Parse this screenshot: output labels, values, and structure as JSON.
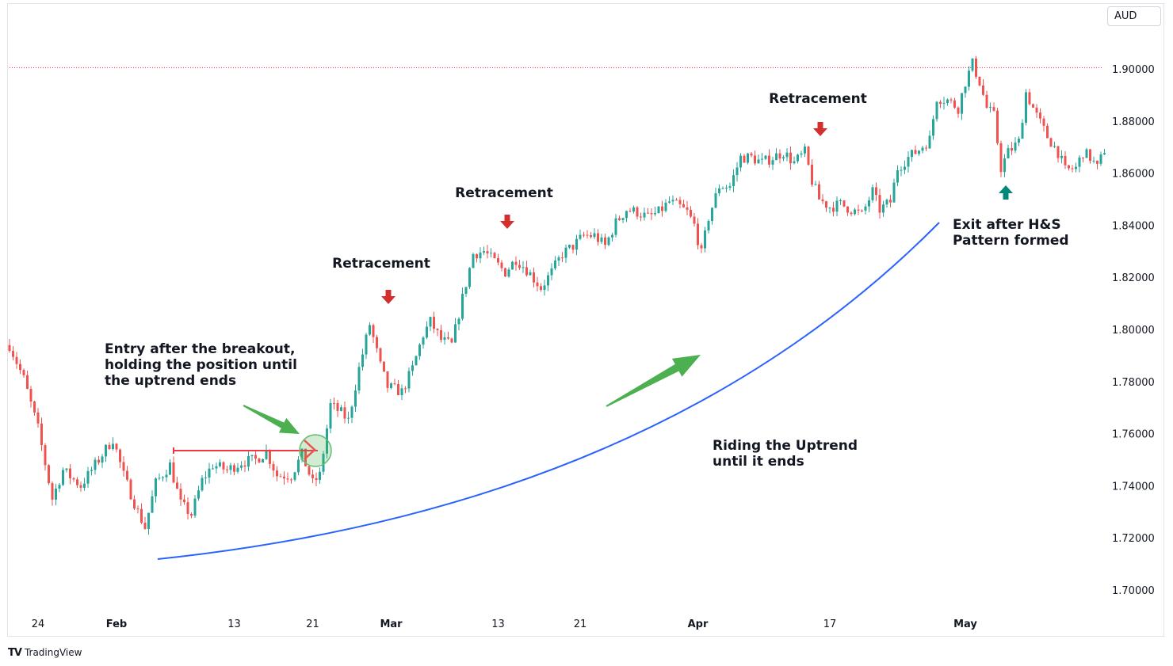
{
  "currency": "AUD",
  "brand": {
    "logo": "TV",
    "name": "TradingView"
  },
  "colors": {
    "up": "#26a69a",
    "down": "#ef5350",
    "curve": "#2962ff",
    "green_arrow": "#4caf50",
    "red_marker": "#d32f2f",
    "teal_marker": "#00897b",
    "breakout_line": "#f23645",
    "resistance": "#f23645"
  },
  "chart_data": {
    "type": "candlestick",
    "title": "",
    "xlabel": "",
    "ylabel": "",
    "y_axis_side": "right",
    "ylim": [
      1.69,
      1.915
    ],
    "y_ticks": [
      "1.70000",
      "1.72000",
      "1.74000",
      "1.76000",
      "1.78000",
      "1.80000",
      "1.82000",
      "1.84000",
      "1.86000",
      "1.88000",
      "1.90000"
    ],
    "x_ticks": [
      {
        "label": "24",
        "bold": false,
        "index": 8
      },
      {
        "label": "Feb",
        "bold": true,
        "index": 30
      },
      {
        "label": "13",
        "bold": false,
        "index": 63
      },
      {
        "label": "21",
        "bold": false,
        "index": 85
      },
      {
        "label": "Mar",
        "bold": true,
        "index": 107
      },
      {
        "label": "13",
        "bold": false,
        "index": 137
      },
      {
        "label": "21",
        "bold": false,
        "index": 160
      },
      {
        "label": "Apr",
        "bold": true,
        "index": 193
      },
      {
        "label": "17",
        "bold": false,
        "index": 230
      },
      {
        "label": "May",
        "bold": true,
        "index": 268
      }
    ],
    "resistance_level": 1.9005,
    "breakout_level": 1.7535,
    "anchors": [
      [
        0,
        1.794
      ],
      [
        4,
        1.781
      ],
      [
        8,
        1.762
      ],
      [
        12,
        1.735
      ],
      [
        15,
        1.746
      ],
      [
        20,
        1.74
      ],
      [
        26,
        1.752
      ],
      [
        29,
        1.758
      ],
      [
        32,
        1.744
      ],
      [
        36,
        1.73
      ],
      [
        38,
        1.724
      ],
      [
        41,
        1.741
      ],
      [
        45,
        1.748
      ],
      [
        48,
        1.733
      ],
      [
        51,
        1.729
      ],
      [
        54,
        1.742
      ],
      [
        57,
        1.748
      ],
      [
        61,
        1.746
      ],
      [
        65,
        1.749
      ],
      [
        69,
        1.75
      ],
      [
        72,
        1.753
      ],
      [
        75,
        1.744
      ],
      [
        79,
        1.744
      ],
      [
        82,
        1.752
      ],
      [
        85,
        1.741
      ],
      [
        87,
        1.744
      ],
      [
        90,
        1.771
      ],
      [
        93,
        1.768
      ],
      [
        95,
        1.765
      ],
      [
        98,
        1.785
      ],
      [
        101,
        1.802
      ],
      [
        104,
        1.786
      ],
      [
        106,
        1.778
      ],
      [
        110,
        1.776
      ],
      [
        113,
        1.785
      ],
      [
        116,
        1.798
      ],
      [
        118,
        1.803
      ],
      [
        121,
        1.796
      ],
      [
        124,
        1.794
      ],
      [
        127,
        1.812
      ],
      [
        130,
        1.829
      ],
      [
        133,
        1.83
      ],
      [
        136,
        1.826
      ],
      [
        139,
        1.822
      ],
      [
        142,
        1.827
      ],
      [
        145,
        1.823
      ],
      [
        149,
        1.816
      ],
      [
        152,
        1.822
      ],
      [
        155,
        1.829
      ],
      [
        158,
        1.832
      ],
      [
        161,
        1.836
      ],
      [
        164,
        1.836
      ],
      [
        167,
        1.832
      ],
      [
        170,
        1.841
      ],
      [
        173,
        1.846
      ],
      [
        176,
        1.845
      ],
      [
        179,
        1.843
      ],
      [
        182,
        1.845
      ],
      [
        185,
        1.849
      ],
      [
        188,
        1.847
      ],
      [
        190,
        1.845
      ],
      [
        192,
        1.84
      ],
      [
        194,
        1.829
      ],
      [
        196,
        1.843
      ],
      [
        199,
        1.855
      ],
      [
        202,
        1.855
      ],
      [
        205,
        1.866
      ],
      [
        208,
        1.866
      ],
      [
        211,
        1.864
      ],
      [
        214,
        1.866
      ],
      [
        217,
        1.868
      ],
      [
        220,
        1.864
      ],
      [
        223,
        1.868
      ],
      [
        225,
        1.857
      ],
      [
        227,
        1.85
      ],
      [
        230,
        1.847
      ],
      [
        233,
        1.848
      ],
      [
        236,
        1.846
      ],
      [
        239,
        1.844
      ],
      [
        242,
        1.853
      ],
      [
        244,
        1.846
      ],
      [
        247,
        1.849
      ],
      [
        249,
        1.862
      ],
      [
        252,
        1.866
      ],
      [
        255,
        1.869
      ],
      [
        258,
        1.873
      ],
      [
        260,
        1.889
      ],
      [
        263,
        1.888
      ],
      [
        266,
        1.885
      ],
      [
        268,
        1.895
      ],
      [
        270,
        1.902
      ],
      [
        272,
        1.895
      ],
      [
        274,
        1.885
      ],
      [
        276,
        1.882
      ],
      [
        278,
        1.862
      ],
      [
        280,
        1.868
      ],
      [
        283,
        1.872
      ],
      [
        285,
        1.891
      ],
      [
        288,
        1.882
      ],
      [
        291,
        1.874
      ],
      [
        294,
        1.868
      ],
      [
        296,
        1.861
      ],
      [
        299,
        1.862
      ],
      [
        301,
        1.868
      ],
      [
        303,
        1.866
      ],
      [
        305,
        1.862
      ],
      [
        307,
        1.869
      ]
    ],
    "annotations": [
      {
        "id": "entry-note",
        "lines": [
          "Entry after the breakout,",
          "holding the position until",
          "the uptrend ends"
        ]
      },
      {
        "id": "retracement-1",
        "lines": [
          "Retracement"
        ]
      },
      {
        "id": "retracement-2",
        "lines": [
          "Retracement"
        ]
      },
      {
        "id": "retracement-3",
        "lines": [
          "Retracement"
        ]
      },
      {
        "id": "riding-note",
        "lines": [
          "Riding the Uptrend",
          "until it ends"
        ]
      },
      {
        "id": "exit-note",
        "lines": [
          "Exit after H&S",
          "Pattern formed"
        ]
      }
    ]
  }
}
